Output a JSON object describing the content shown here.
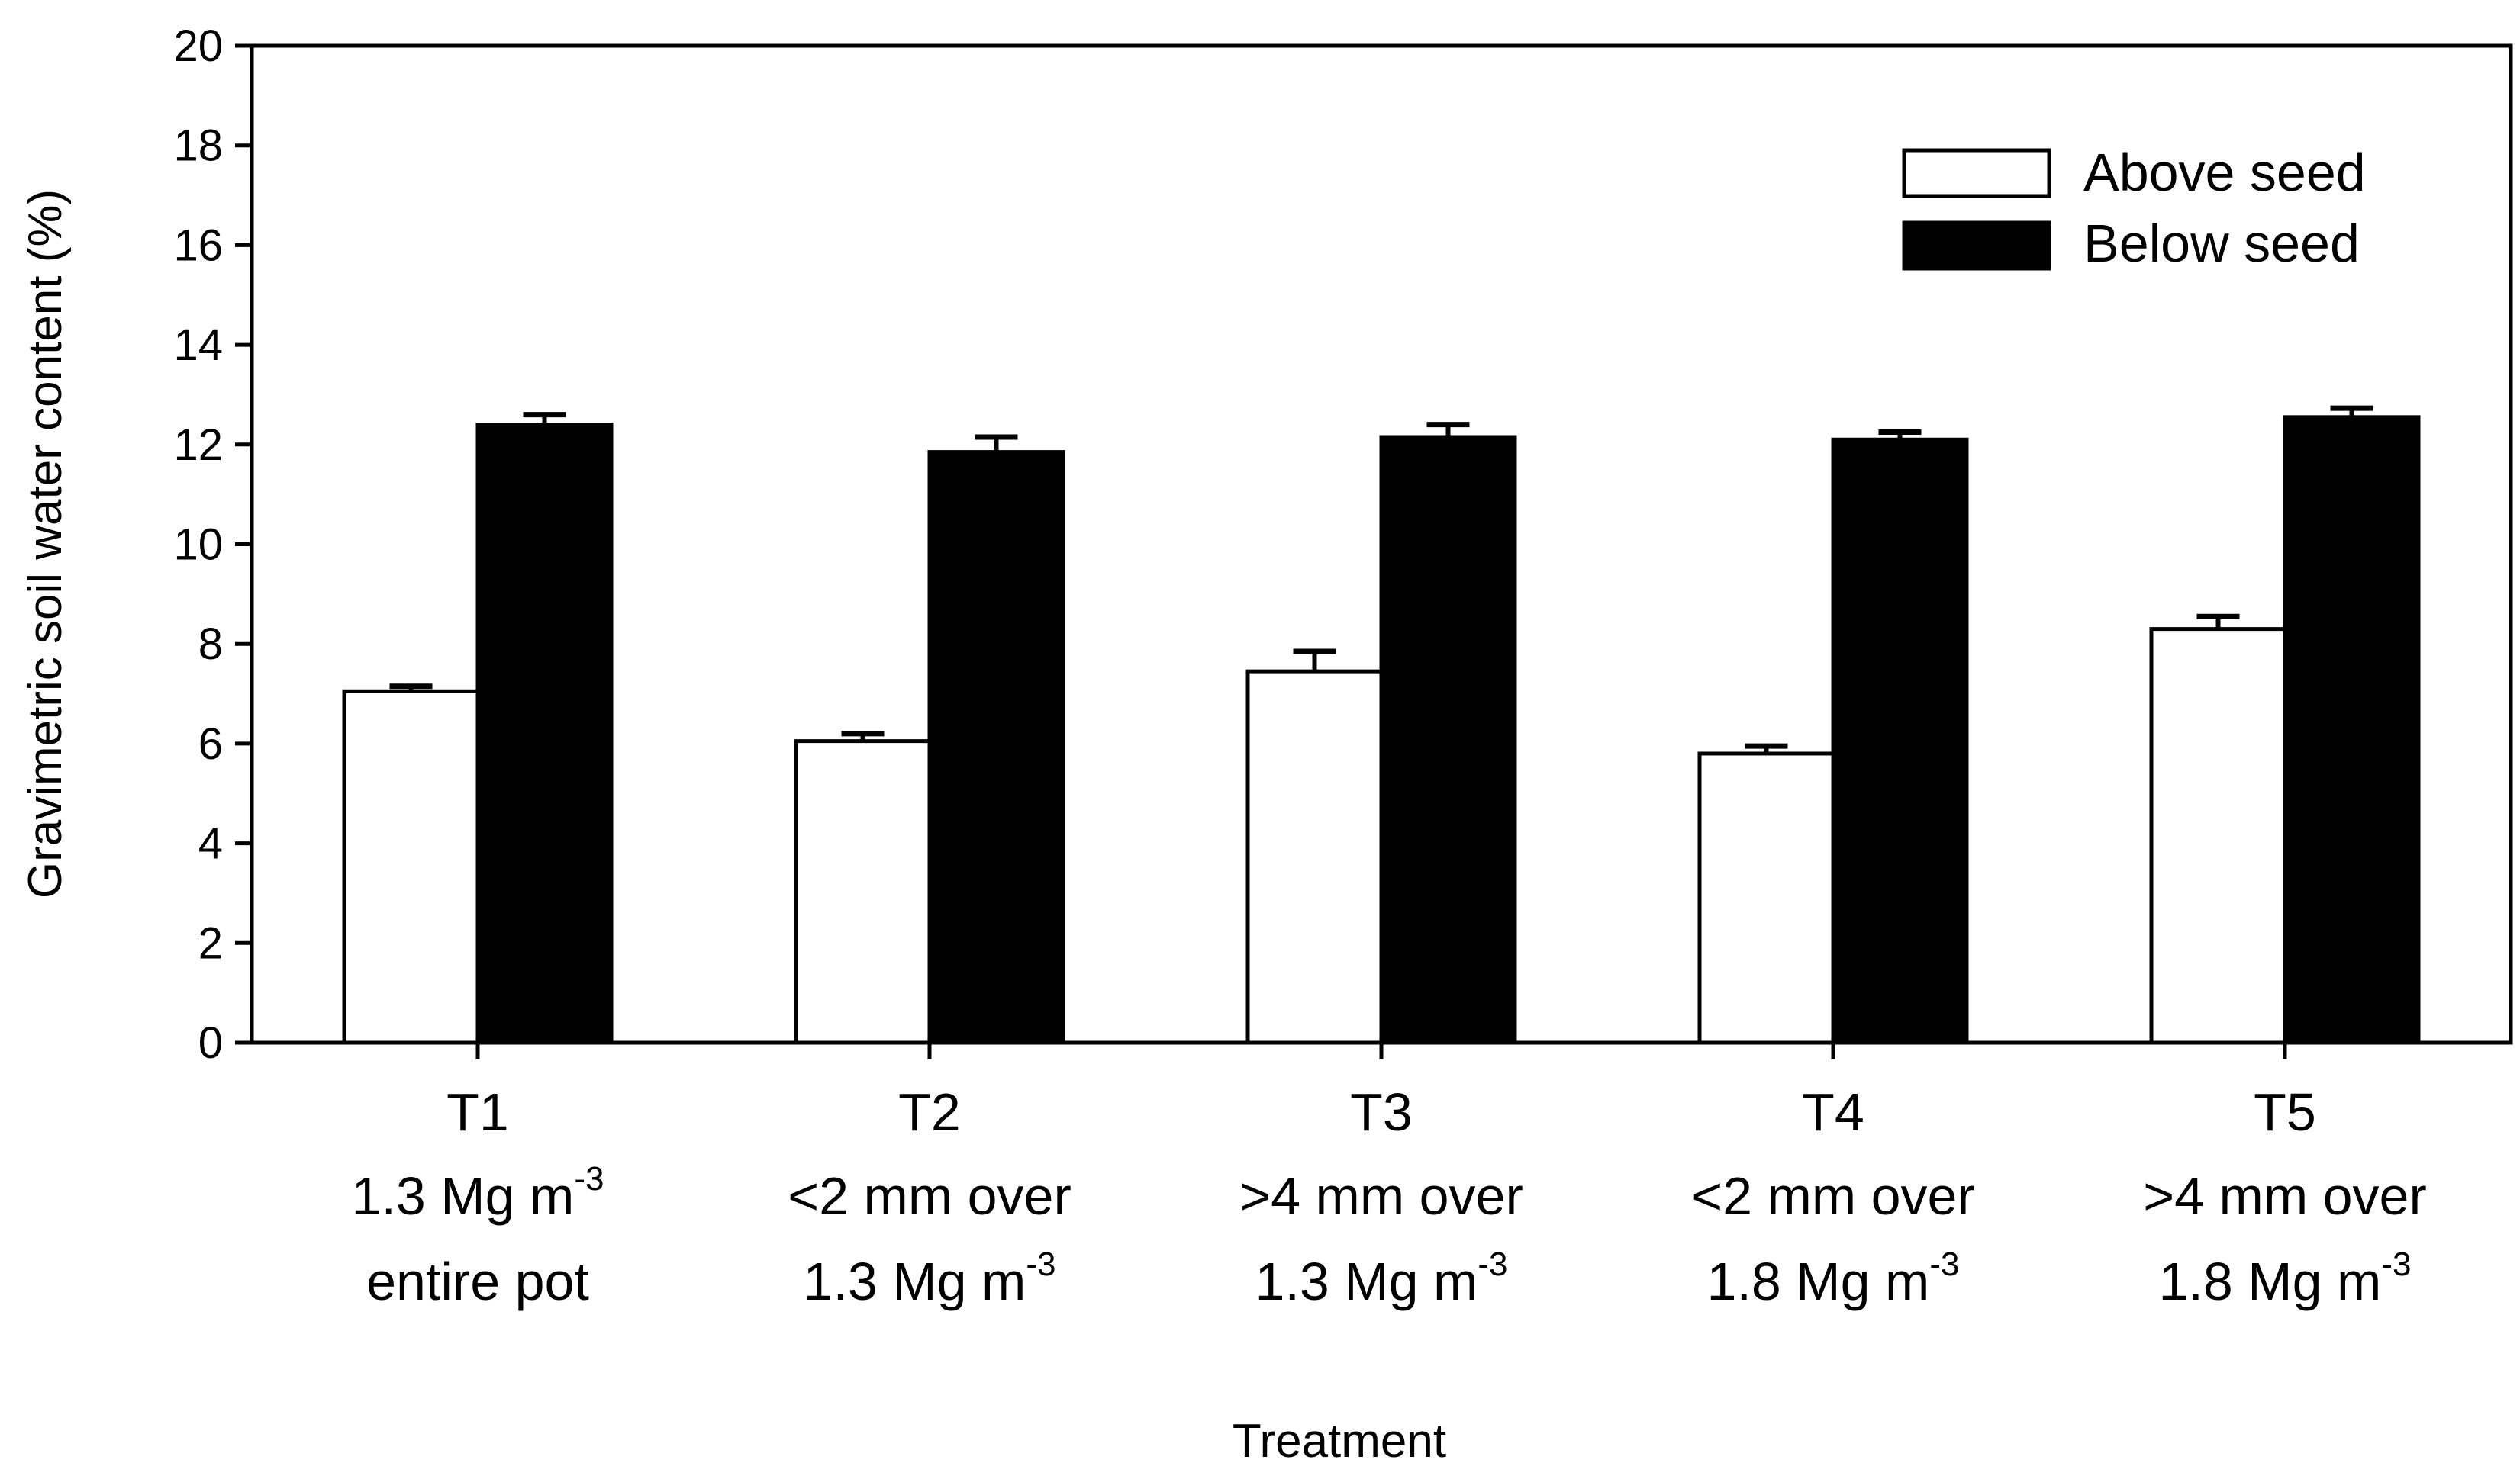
{
  "chart_data": {
    "type": "bar",
    "xlabel": "Treatment",
    "ylabel": "Gravimetric soil water content (%)",
    "ylim": [
      0,
      20
    ],
    "yticks": [
      0,
      2,
      4,
      6,
      8,
      10,
      12,
      14,
      16,
      18,
      20
    ],
    "grid": false,
    "legend_position": "top-right",
    "categories": [
      {
        "code": "T1",
        "line2": "1.3 Mg m",
        "line2_sup": "-3",
        "line3": "entire pot",
        "line3_sup": ""
      },
      {
        "code": "T2",
        "line2": "<2 mm over",
        "line2_sup": "",
        "line3": "1.3 Mg m",
        "line3_sup": "-3"
      },
      {
        "code": "T3",
        "line2": ">4 mm over",
        "line2_sup": "",
        "line3": "1.3 Mg m",
        "line3_sup": "-3"
      },
      {
        "code": "T4",
        "line2": "<2 mm over",
        "line2_sup": "",
        "line3": "1.8 Mg m",
        "line3_sup": "-3"
      },
      {
        "code": "T5",
        "line2": ">4 mm over",
        "line2_sup": "",
        "line3": "1.8 Mg m",
        "line3_sup": "-3"
      }
    ],
    "series": [
      {
        "name": "Above seed",
        "fill": "#ffffff",
        "values": [
          7.05,
          6.05,
          7.45,
          5.8,
          8.3
        ],
        "errors": [
          0.1,
          0.15,
          0.4,
          0.15,
          0.25
        ]
      },
      {
        "name": "Below seed",
        "fill": "#000000",
        "values": [
          12.4,
          11.85,
          12.15,
          12.1,
          12.55
        ],
        "errors": [
          0.2,
          0.3,
          0.25,
          0.15,
          0.18
        ]
      }
    ]
  }
}
